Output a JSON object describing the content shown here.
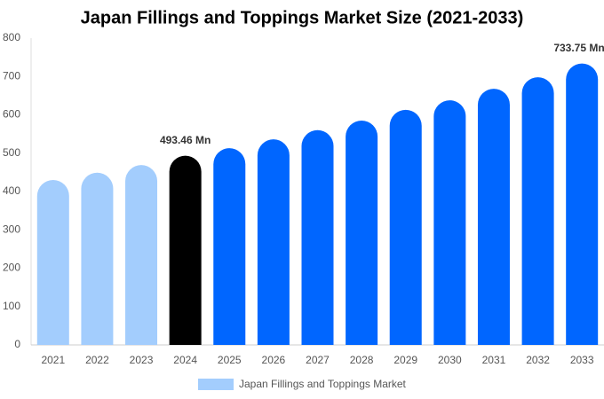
{
  "chart_data": {
    "type": "bar",
    "title": "Japan Fillings and Toppings Market Size (2021-2033)",
    "categories": [
      "2021",
      "2022",
      "2023",
      "2024",
      "2025",
      "2026",
      "2027",
      "2028",
      "2029",
      "2030",
      "2031",
      "2032",
      "2033"
    ],
    "series": [
      {
        "name": "Japan Fillings and Toppings Market",
        "color": "#a3cdfd",
        "values": [
          430,
          449,
          469,
          493.46,
          513,
          536,
          560,
          585,
          613,
          638,
          668,
          698,
          733.75
        ],
        "value_labels": [
          null,
          null,
          null,
          "493.46 Mn",
          null,
          null,
          null,
          null,
          null,
          null,
          null,
          null,
          "733.75 Mn"
        ],
        "colors": [
          "#a3cdfd",
          "#a3cdfd",
          "#a3cdfd",
          "#000000",
          "#0066ff",
          "#0066ff",
          "#0066ff",
          "#0066ff",
          "#0066ff",
          "#0066ff",
          "#0066ff",
          "#0066ff",
          "#0066ff"
        ]
      }
    ],
    "ylim": [
      0,
      800
    ],
    "yticks": [
      0,
      100,
      200,
      300,
      400,
      500,
      600,
      700,
      800
    ],
    "grid": false
  }
}
